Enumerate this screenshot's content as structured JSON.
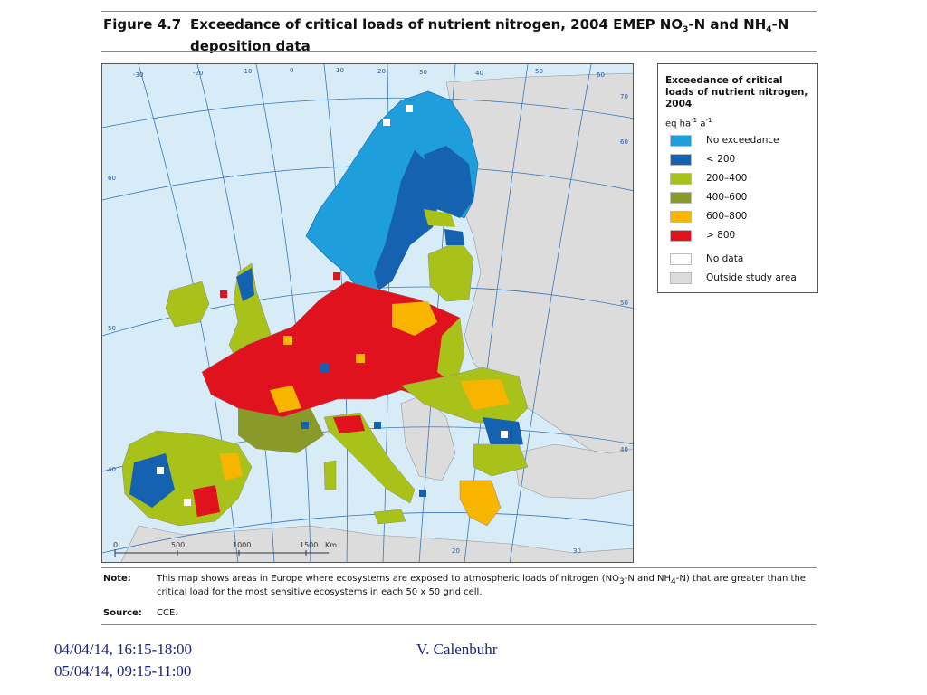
{
  "figure": {
    "number": "Figure 4.7",
    "title_pre": "Exceedance of critical loads of nutrient nitrogen, 2004 EMEP NO",
    "title_sub1": "3",
    "title_mid": "-N and NH",
    "title_sub2": "4",
    "title_post": "-N deposition data"
  },
  "map": {
    "colors": {
      "sea": "#d7ecf7",
      "outside": "#dcdcdc",
      "no_exceedance": "#1e9fdc",
      "lt_200": "#1563b0",
      "c200_400": "#a8c21a",
      "c400_600": "#8a9a2a",
      "c600_800": "#f7b500",
      "gt_800": "#e0121d",
      "no_data": "#ffffff"
    },
    "graticule_labels": {
      "longitudes": [
        "-30",
        "-20",
        "-10",
        "0",
        "10",
        "20",
        "30",
        "40",
        "50",
        "60",
        "20",
        "30"
      ],
      "latitudes_right": [
        "70",
        "60",
        "50",
        "40"
      ],
      "latitudes_left": [
        "60",
        "50",
        "40"
      ]
    },
    "scale_bar": {
      "ticks": [
        "0",
        "500",
        "1000",
        "1500"
      ],
      "unit": "Km"
    }
  },
  "legend": {
    "title": "Exceedance of critical loads of nutrient nitrogen, 2004",
    "unit_eq": "eq ha",
    "unit_exp1": "-1",
    "unit_a": " a",
    "unit_exp2": "-1",
    "items": [
      {
        "label": "No exceedance",
        "color": "#1e9fdc"
      },
      {
        "label": "< 200",
        "color": "#1563b0"
      },
      {
        "label": "200–400",
        "color": "#a8c21a"
      },
      {
        "label": "400–600",
        "color": "#8a9a2a"
      },
      {
        "label": "600–800",
        "color": "#f7b500"
      },
      {
        "label": "> 800",
        "color": "#e0121d"
      },
      {
        "label": "No data",
        "color": "#ffffff"
      },
      {
        "label": "Outside study area",
        "color": "#dcdcdc"
      }
    ]
  },
  "note": {
    "label": "Note:",
    "text_a": "This map shows areas in Europe where ecosystems are exposed to atmospheric loads of nitrogen (NO",
    "sub1": "3",
    "text_b": "-N and NH",
    "sub2": "4",
    "text_c": "-N) that are greater than the critical load for the most sensitive ecosystems in each 50 x 50 grid cell."
  },
  "source": {
    "label": "Source:",
    "text": "CCE."
  },
  "footer": {
    "date1": "04/04/14, 16:15-18:00",
    "date2": "05/04/14, 09:15-11:00",
    "author": "V. Calenbuhr"
  }
}
